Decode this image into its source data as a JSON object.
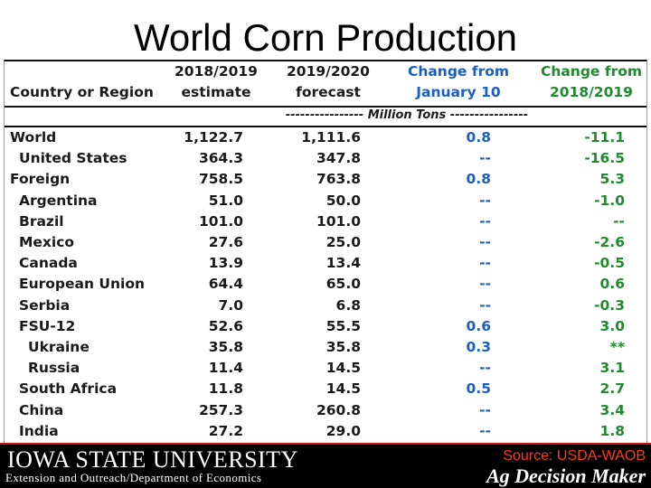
{
  "title": "World Corn Production",
  "table": {
    "headers": [
      {
        "line1": "",
        "line2": "Country or Region"
      },
      {
        "line1": "2018/2019",
        "line2": "estimate"
      },
      {
        "line1": "2019/2020",
        "line2": "forecast"
      },
      {
        "line1": "Change from",
        "line2": "January 10"
      },
      {
        "line1": "Change from",
        "line2": "2018/2019"
      }
    ],
    "units": "---------------- Million Tons ----------------",
    "rows": [
      {
        "name": "World",
        "indent": 0,
        "est": "1,122.7",
        "fc": "1,111.6",
        "chg_jan": "0.8",
        "chg_prev": "-11.1"
      },
      {
        "name": "United States",
        "indent": 1,
        "est": "364.3",
        "fc": "347.8",
        "chg_jan": "--",
        "chg_prev": "-16.5"
      },
      {
        "name": "Foreign",
        "indent": 0,
        "est": "758.5",
        "fc": "763.8",
        "chg_jan": "0.8",
        "chg_prev": "5.3"
      },
      {
        "name": "Argentina",
        "indent": 1,
        "est": "51.0",
        "fc": "50.0",
        "chg_jan": "--",
        "chg_prev": "-1.0"
      },
      {
        "name": "Brazil",
        "indent": 1,
        "est": "101.0",
        "fc": "101.0",
        "chg_jan": "--",
        "chg_prev": "--"
      },
      {
        "name": "Mexico",
        "indent": 1,
        "est": "27.6",
        "fc": "25.0",
        "chg_jan": "--",
        "chg_prev": "-2.6"
      },
      {
        "name": "Canada",
        "indent": 1,
        "est": "13.9",
        "fc": "13.4",
        "chg_jan": "--",
        "chg_prev": "-0.5"
      },
      {
        "name": "European Union",
        "indent": 1,
        "est": "64.4",
        "fc": "65.0",
        "chg_jan": "--",
        "chg_prev": "0.6"
      },
      {
        "name": "Serbia",
        "indent": 1,
        "est": "7.0",
        "fc": "6.8",
        "chg_jan": "--",
        "chg_prev": "-0.3"
      },
      {
        "name": "FSU-12",
        "indent": 1,
        "est": "52.6",
        "fc": "55.5",
        "chg_jan": "0.6",
        "chg_prev": "3.0"
      },
      {
        "name": "Ukraine",
        "indent": 2,
        "est": "35.8",
        "fc": "35.8",
        "chg_jan": "0.3",
        "chg_prev": "**"
      },
      {
        "name": "Russia",
        "indent": 2,
        "est": "11.4",
        "fc": "14.5",
        "chg_jan": "--",
        "chg_prev": "3.1"
      },
      {
        "name": "South Africa",
        "indent": 1,
        "est": "11.8",
        "fc": "14.5",
        "chg_jan": "0.5",
        "chg_prev": "2.7"
      },
      {
        "name": "China",
        "indent": 1,
        "est": "257.3",
        "fc": "260.8",
        "chg_jan": "--",
        "chg_prev": "3.4"
      },
      {
        "name": "India",
        "indent": 1,
        "est": "27.2",
        "fc": "29.0",
        "chg_jan": "--",
        "chg_prev": "1.8"
      }
    ]
  },
  "footer": {
    "university": "IOWA STATE UNIVERSITY",
    "department": "Extension and Outreach/Department of Economics",
    "source": "Source: USDA-WAOB",
    "brand": "Ag Decision Maker"
  },
  "colors": {
    "blue_column": "#1a5fc8",
    "green_column": "#1f8a2e",
    "source_text": "#ff3a1a",
    "footer_bg": "#000000"
  }
}
